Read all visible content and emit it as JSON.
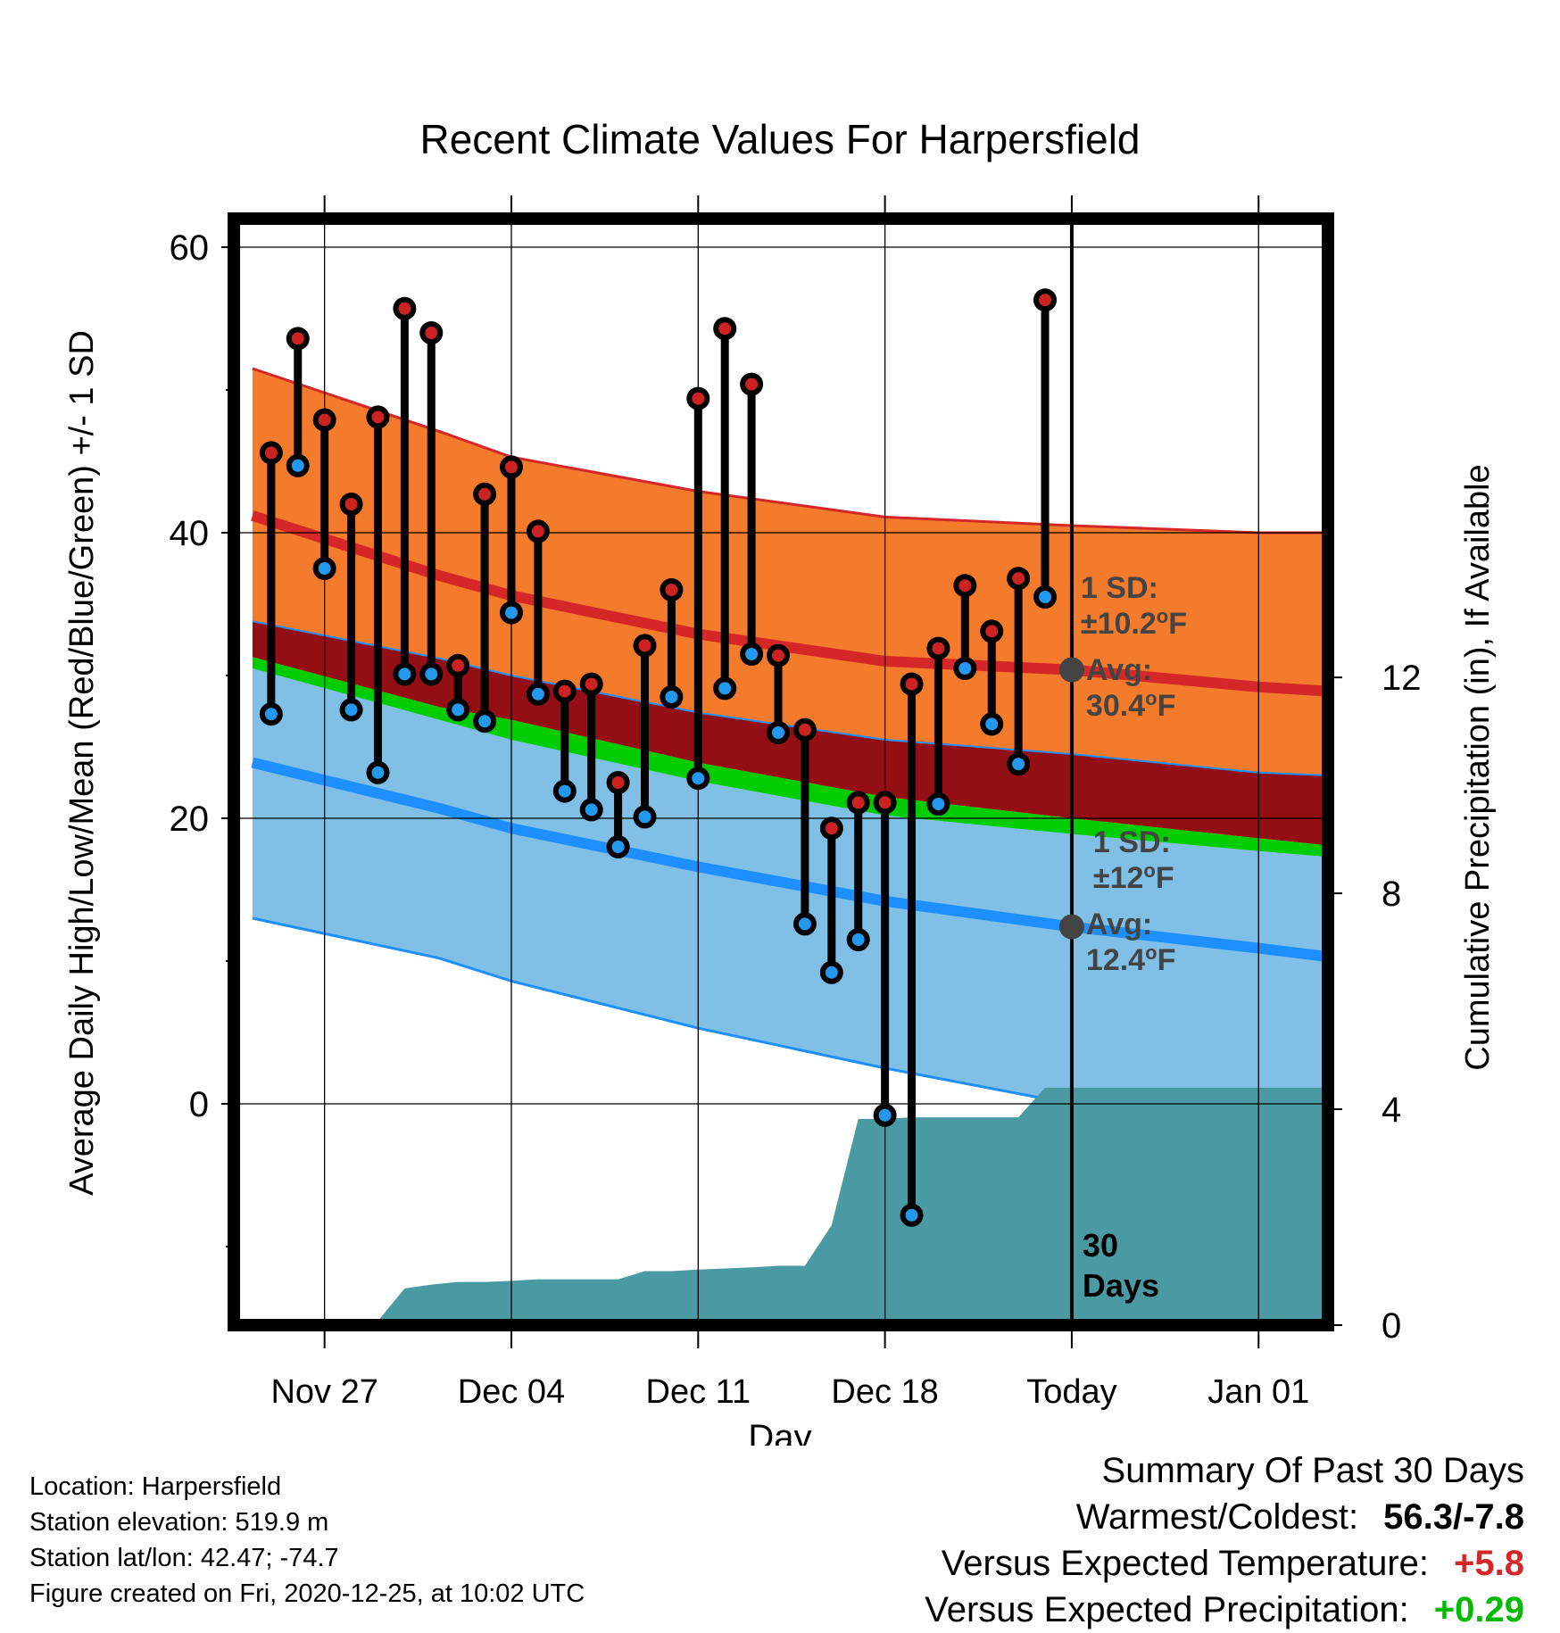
{
  "chart_data": {
    "type": "line",
    "title": "Recent Climate Values For Harpersfield",
    "xlabel": "Day",
    "ylabel": "Average Daily High/Low/Mean (Red/Blue/Green) +/- 1 SD",
    "y2label": "Cumulative Precipitation (in), If Available",
    "ylim": [
      -15.5,
      62
    ],
    "y2lim": [
      0,
      20.5
    ],
    "yticks": [
      0,
      20,
      40,
      60
    ],
    "y2ticks": [
      0,
      4,
      8,
      12
    ],
    "xlim": [
      -3.4,
      37.6
    ],
    "xticks": [
      {
        "x": 0,
        "label": "Nov 27"
      },
      {
        "x": 7,
        "label": "Dec 04"
      },
      {
        "x": 14,
        "label": "Dec 11"
      },
      {
        "x": 21,
        "label": "Dec 18"
      },
      {
        "x": 28,
        "label": "Today"
      },
      {
        "x": 35,
        "label": "Jan 01"
      }
    ],
    "grid": true,
    "today_x": 28,
    "today_label": [
      "30",
      "Days"
    ],
    "normals": {
      "x": [
        -2.7,
        4.3,
        7,
        14,
        21,
        28,
        35,
        37.6
      ],
      "high_upper": [
        51.5,
        47.1,
        45.3,
        42.9,
        41.1,
        40.5,
        40.0,
        40.0
      ],
      "high_avg": [
        41.2,
        37.0,
        35.6,
        32.9,
        31.0,
        30.4,
        29.2,
        28.9
      ],
      "high_lower": [
        33.8,
        31.2,
        30.0,
        27.4,
        25.5,
        24.5,
        23.2,
        23.0
      ],
      "mean_avg": [
        31.3,
        27.8,
        26.9,
        23.9,
        21.5,
        20.0,
        18.6,
        18.1
      ],
      "low_upper": [
        30.5,
        26.9,
        25.5,
        22.6,
        20.2,
        18.9,
        17.7,
        17.3
      ],
      "low_avg": [
        23.9,
        20.7,
        19.3,
        16.6,
        14.2,
        12.4,
        10.9,
        10.3
      ],
      "low_lower": [
        13.0,
        10.2,
        8.6,
        5.3,
        2.5,
        0.0,
        -1.6,
        -3.1
      ]
    },
    "high_sd_label": "1 SD:",
    "high_sd_value": "±10.2",
    "high_avg_label": "Avg:",
    "high_avg_value": "30.4",
    "low_sd_label": "1 SD:",
    "low_sd_value": "±12",
    "low_avg_label": "Avg:",
    "low_avg_value": "12.4",
    "unit_deg": "o",
    "unit_f": "F",
    "observed": {
      "x": [
        -2,
        -1,
        0,
        1,
        2,
        3,
        4,
        5,
        6,
        7,
        8,
        9,
        10,
        11,
        12,
        13,
        14,
        15,
        16,
        17,
        18,
        19,
        20,
        21,
        22,
        23,
        24,
        25,
        26,
        27
      ],
      "high": [
        45.6,
        53.6,
        47.9,
        42.0,
        48.1,
        55.7,
        54.0,
        30.7,
        42.7,
        44.6,
        40.1,
        28.9,
        29.4,
        22.5,
        32.1,
        36.0,
        49.4,
        54.3,
        50.4,
        31.4,
        26.2,
        19.3,
        21.1,
        21.1,
        29.4,
        31.9,
        36.3,
        33.1,
        36.8,
        56.3
      ],
      "low": [
        27.3,
        44.7,
        37.5,
        27.6,
        23.2,
        30.1,
        30.1,
        27.6,
        26.8,
        34.4,
        28.7,
        21.9,
        20.6,
        18.0,
        20.1,
        28.5,
        22.8,
        29.1,
        31.5,
        26.0,
        12.6,
        9.2,
        11.5,
        -0.8,
        -7.8,
        21.0,
        30.5,
        26.6,
        23.8,
        35.5
      ]
    },
    "precip": {
      "x": [
        -2.7,
        -1.3,
        -1,
        0,
        1,
        2,
        3,
        4,
        5,
        6,
        7,
        8,
        9,
        10,
        11,
        12,
        13,
        14,
        15,
        16,
        17,
        18,
        19,
        20,
        21,
        22,
        23,
        24,
        25,
        26,
        27,
        28,
        35,
        37.6
      ],
      "values": [
        0,
        0,
        0.05,
        0.08,
        0.08,
        0.08,
        0.68,
        0.75,
        0.8,
        0.8,
        0.82,
        0.85,
        0.85,
        0.85,
        0.85,
        1.0,
        1.0,
        1.03,
        1.05,
        1.07,
        1.1,
        1.1,
        1.85,
        3.82,
        3.82,
        3.85,
        3.85,
        3.85,
        3.85,
        3.85,
        4.4,
        4.4,
        4.4,
        4.4
      ]
    },
    "colors": {
      "high_band": "#f47b2b",
      "high_line": "#d62728",
      "mean_band": "#930f13",
      "mean_line": "#00cc00",
      "low_band": "#80c0e7",
      "low_line": "#1e8fff",
      "precip": "#4a9aa4",
      "high_marker": "#cc2222",
      "low_marker": "#2299ee",
      "avg_marker": "#444444",
      "annotation": "#444444"
    }
  },
  "footer": {
    "location": "Location: Harpersfield",
    "elevation": "Station elevation: 519.9 m",
    "latlon": "Station lat/lon: 42.47; -74.7",
    "created": "Figure created on Fri, 2020-12-25, at 10:02 UTC"
  },
  "summary": {
    "title": "Summary Of Past 30 Days",
    "warmest_label": "Warmest/Coldest:",
    "warmest_value": "56.3/-7.8",
    "temp_label": "Versus Expected Temperature:",
    "temp_value": "+5.8",
    "temp_color": "#d62728",
    "precip_label": "Versus Expected Precipitation:",
    "precip_value": "+0.29",
    "precip_color": "#00bb00"
  }
}
